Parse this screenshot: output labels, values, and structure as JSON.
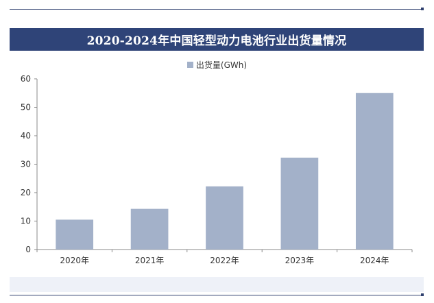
{
  "title": "2020-2024年中国轻型动力电池行业出货量情况",
  "colors": {
    "title_bg": "#2f4478",
    "bar": "#a3b1c9",
    "axis": "#888888",
    "rule": "#2e3f6e"
  },
  "chart_data": {
    "type": "bar",
    "title": "2020-2024年中国轻型动力电池行业出货量情况",
    "categories": [
      "2020年",
      "2021年",
      "2022年",
      "2023年",
      "2024年"
    ],
    "series": [
      {
        "name": "出货量(GWh)",
        "values": [
          10.5,
          14.3,
          22.2,
          32.3,
          55.0
        ]
      }
    ],
    "ylim": [
      0,
      60
    ],
    "yticks": [
      "0",
      "10",
      "20",
      "30",
      "40",
      "50",
      "60"
    ],
    "grid": false,
    "legend": "top-center"
  }
}
